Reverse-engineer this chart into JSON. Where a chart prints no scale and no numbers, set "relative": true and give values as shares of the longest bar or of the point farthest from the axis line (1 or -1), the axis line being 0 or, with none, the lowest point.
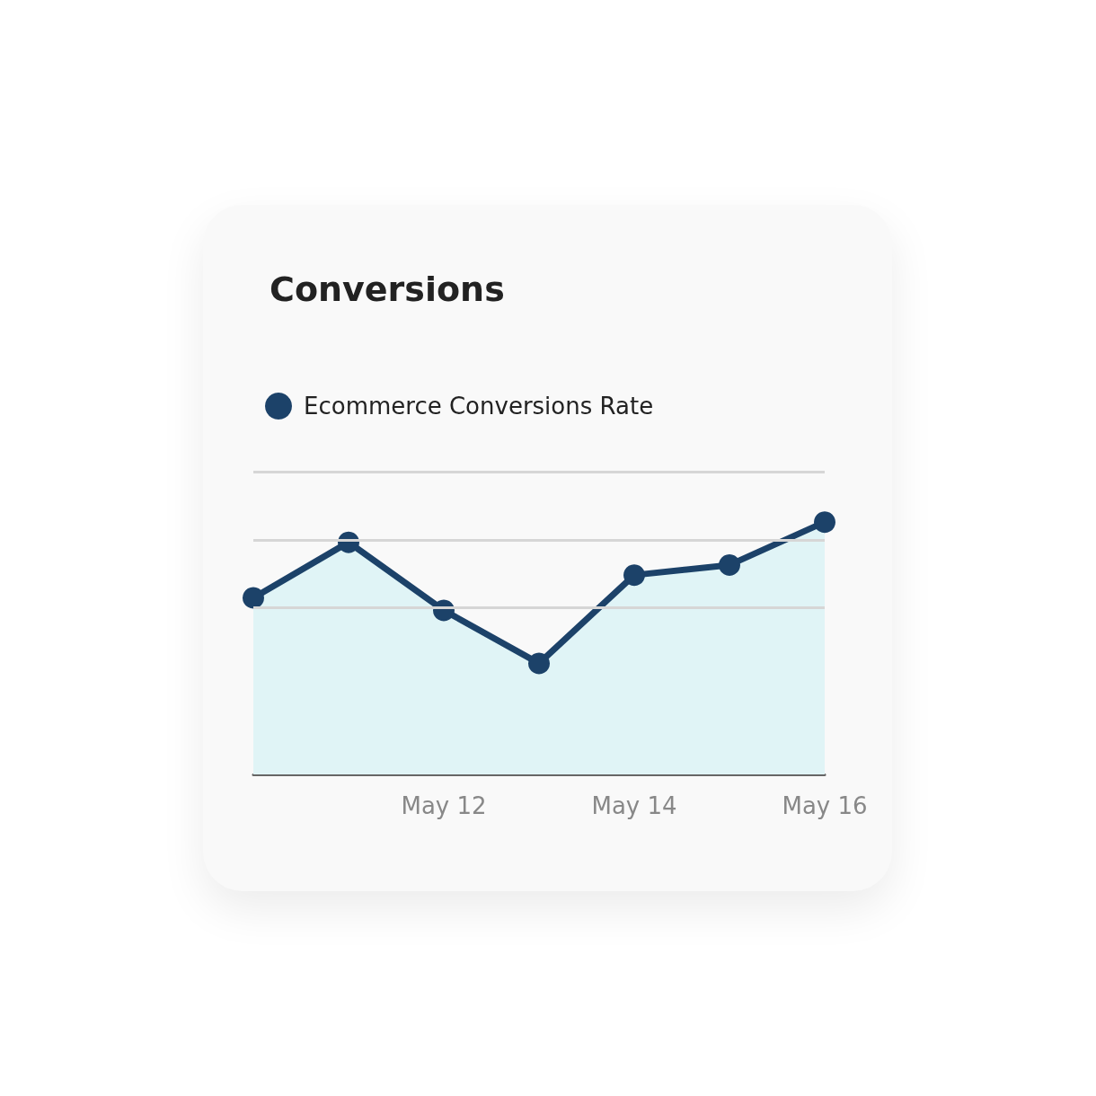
{
  "chart_data": {
    "type": "area",
    "title": "Conversions",
    "categories": [
      null,
      null,
      "May 12",
      null,
      "May 14",
      null,
      "May 16"
    ],
    "series": [
      {
        "name": "Ecommerce Conversions Rate",
        "color": "#1c4269",
        "values": [
          0.7,
          0.92,
          0.65,
          0.44,
          0.79,
          0.83,
          1
        ]
      }
    ],
    "ref_lines": [
      {
        "axis": "y",
        "value": 1.2,
        "color": "#d6d6d6"
      },
      {
        "axis": "y",
        "value": 0.93,
        "color": "#d6d6d6"
      },
      {
        "axis": "y",
        "value": 0.66,
        "color": "#d6d6d6"
      }
    ],
    "relative": true,
    "legend": "top left",
    "marker": "circle"
  }
}
